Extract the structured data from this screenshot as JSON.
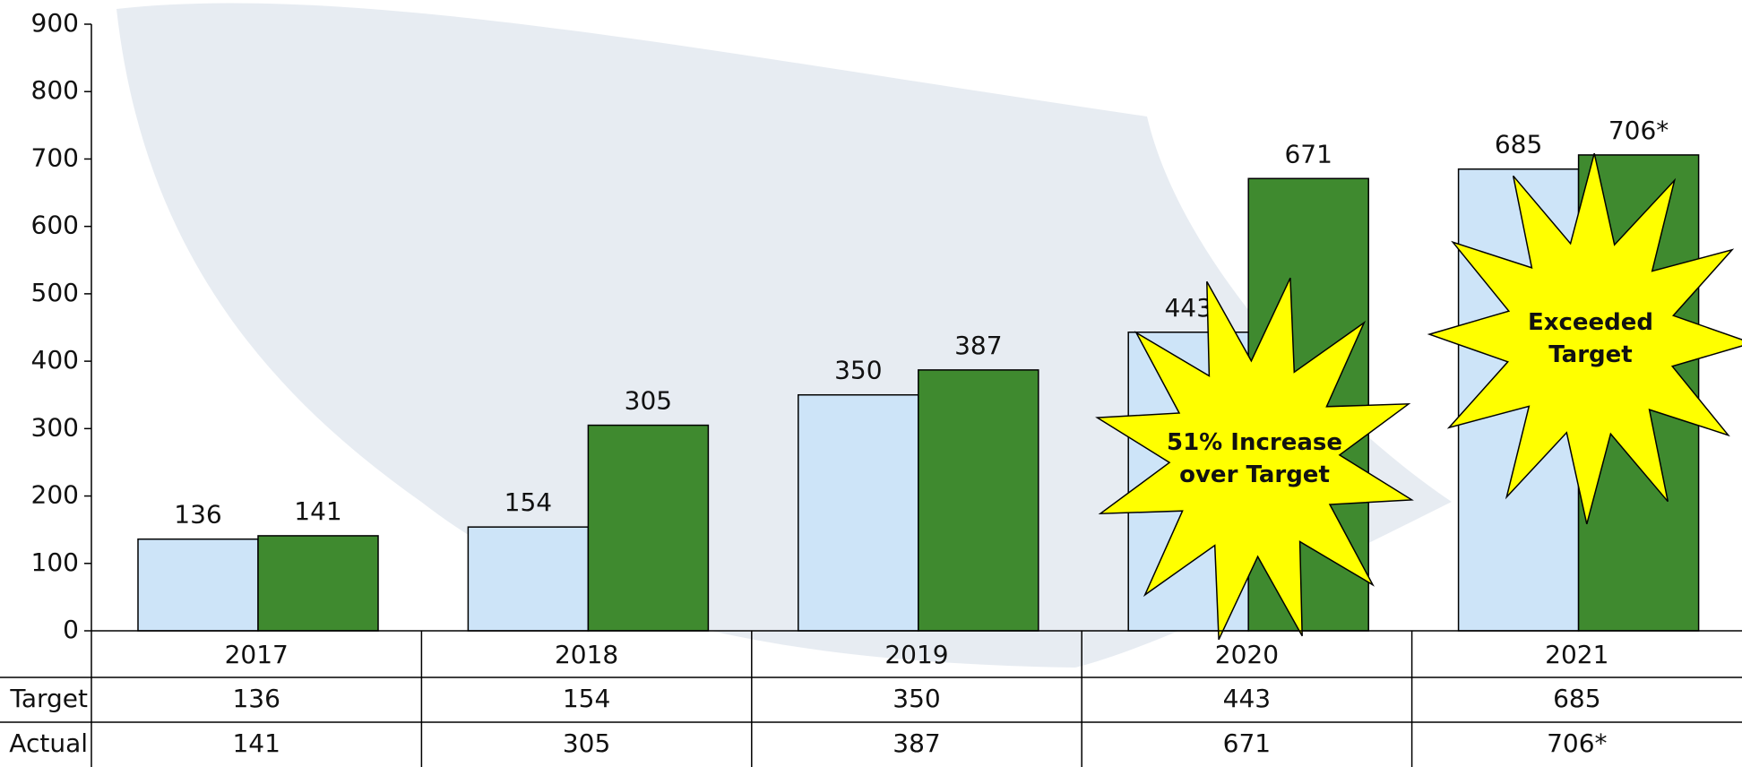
{
  "chart_data": {
    "type": "bar",
    "categories": [
      "2017",
      "2018",
      "2019",
      "2020",
      "2021"
    ],
    "series": [
      {
        "name": "Target",
        "color": "#cde4f8",
        "values": [
          136,
          154,
          350,
          443,
          685
        ]
      },
      {
        "name": "Actual",
        "color": "#3f8a2f",
        "values": [
          141,
          305,
          387,
          671,
          706
        ],
        "value_labels": [
          "141",
          "305",
          "387",
          "671",
          "706*"
        ]
      }
    ],
    "ylim": [
      0,
      900
    ],
    "yticks": [
      0,
      100,
      200,
      300,
      400,
      500,
      600,
      700,
      800,
      900
    ],
    "grid": false,
    "data_table": true,
    "annotations": [
      "51% Increase over Target",
      "Exceeded Target"
    ]
  }
}
